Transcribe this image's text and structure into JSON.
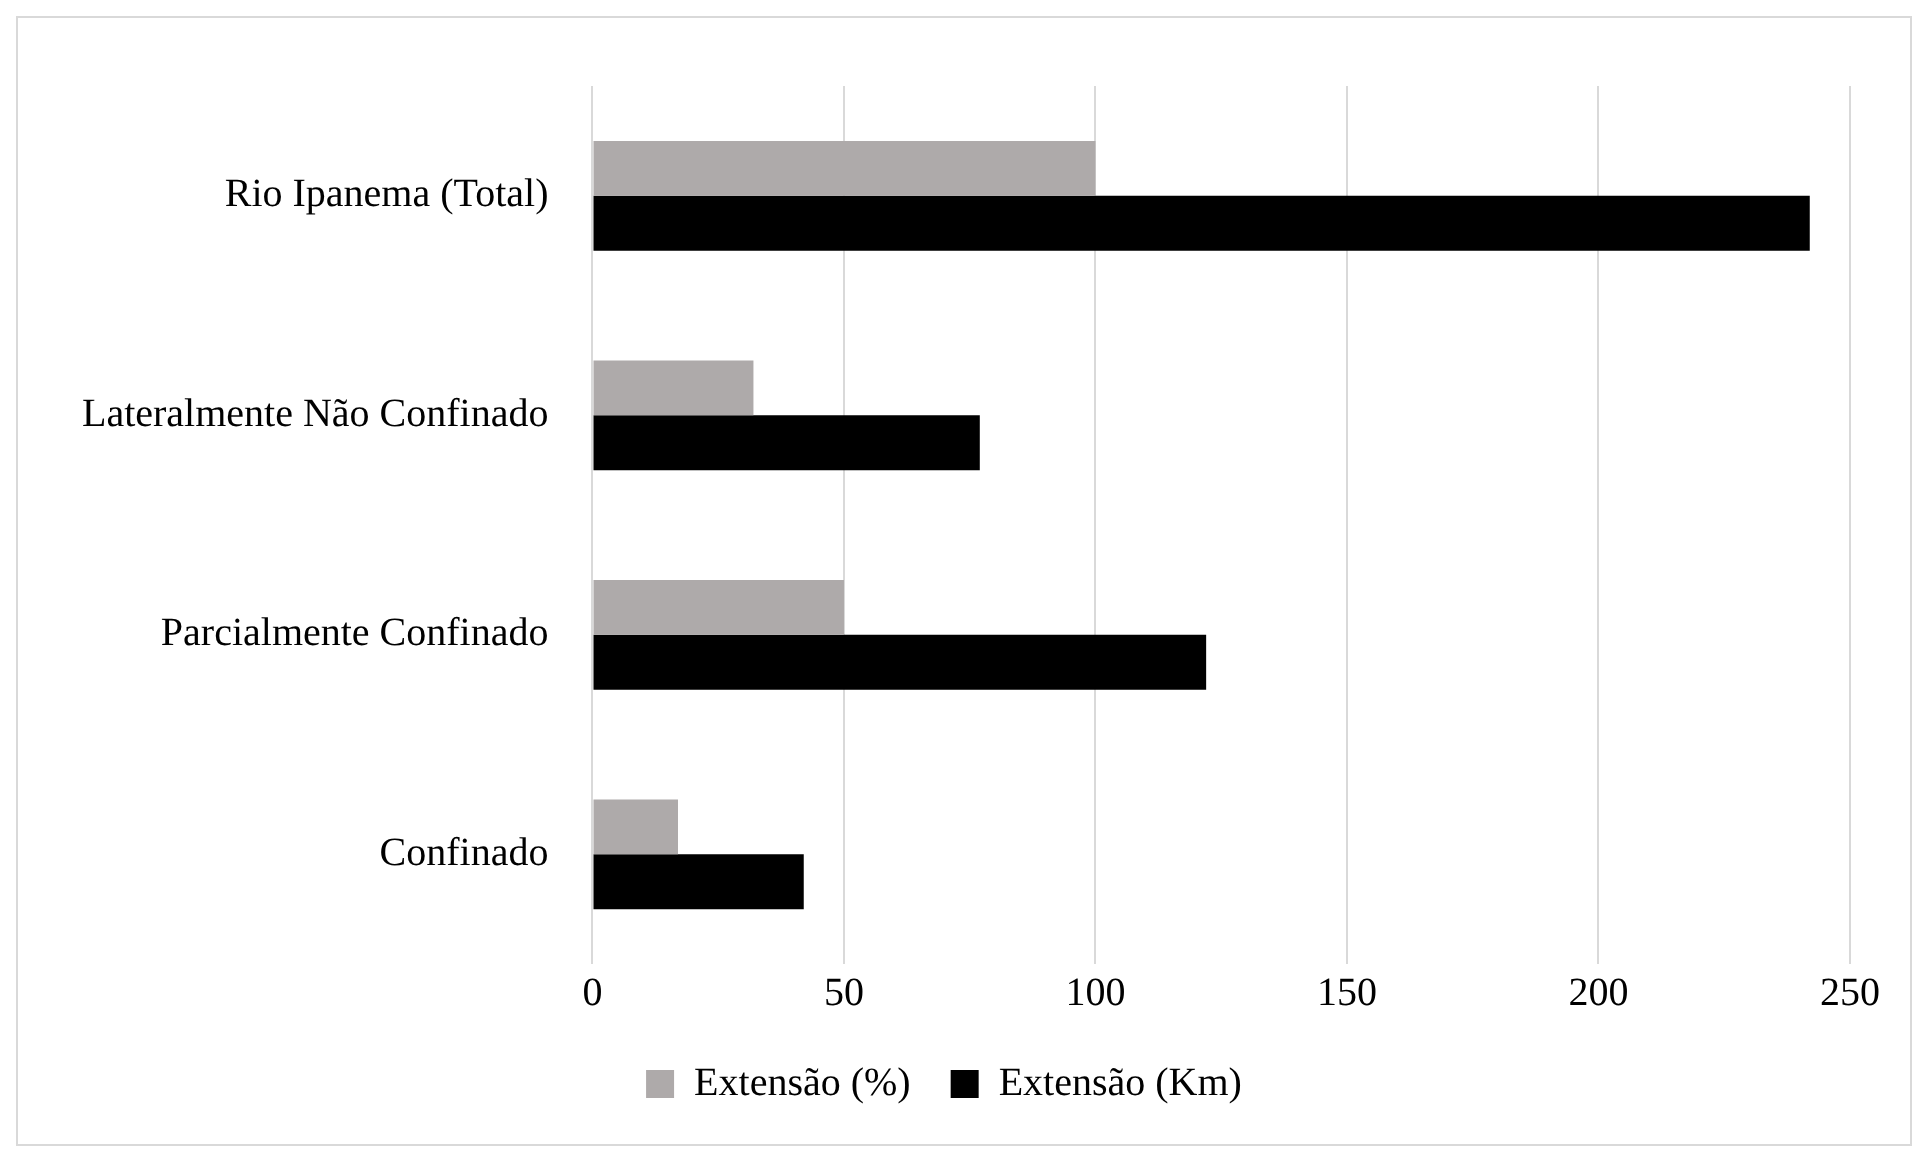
{
  "chart_data": {
    "type": "bar",
    "orientation": "horizontal",
    "categories": [
      "Rio Ipanema (Total)",
      "Lateralmente Não Confinado",
      "Parcialmente Confinado",
      "Confinado"
    ],
    "series": [
      {
        "name": "Extensão (%)",
        "color": "#aeaaaa",
        "values": [
          100,
          32,
          50,
          17
        ]
      },
      {
        "name": "Extensão (Km)",
        "color": "#000000",
        "values": [
          242,
          77,
          122,
          42
        ]
      }
    ],
    "xlim": [
      0,
      250
    ],
    "xticks": [
      0,
      50,
      100,
      150,
      200,
      250
    ],
    "grid": "x",
    "legend": "bottom"
  }
}
